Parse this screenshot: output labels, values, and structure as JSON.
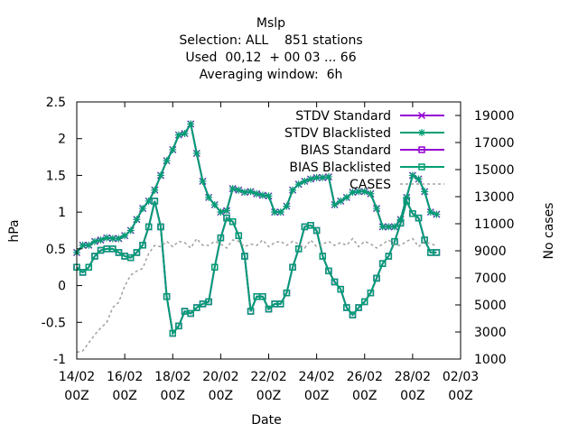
{
  "chart_data": {
    "type": "line",
    "title_lines": [
      "Mslp",
      "Selection: ALL    851 stations",
      "Used  00,12  + 00 03 ... 66",
      "Averaging window:  6h"
    ],
    "xlabel": "Date",
    "ylabel": "hPa",
    "y2label": "No cases",
    "x_unit": "days since 14/02 00Z",
    "x_ticks": [
      {
        "v": 0,
        "l1": "14/02",
        "l2": "00Z"
      },
      {
        "v": 2,
        "l1": "16/02",
        "l2": "00Z"
      },
      {
        "v": 4,
        "l1": "18/02",
        "l2": "00Z"
      },
      {
        "v": 6,
        "l1": "20/02",
        "l2": "00Z"
      },
      {
        "v": 8,
        "l1": "22/02",
        "l2": "00Z"
      },
      {
        "v": 10,
        "l1": "24/02",
        "l2": "00Z"
      },
      {
        "v": 12,
        "l1": "26/02",
        "l2": "00Z"
      },
      {
        "v": 14,
        "l1": "28/02",
        "l2": "00Z"
      },
      {
        "v": 16,
        "l1": "02/03",
        "l2": "00Z"
      }
    ],
    "xlim": [
      0,
      16
    ],
    "ylim": [
      -1,
      2.5
    ],
    "y_ticks": [
      -1,
      -0.5,
      0,
      0.5,
      1,
      1.5,
      2,
      2.5
    ],
    "y2lim": [
      1000,
      20000
    ],
    "y2_ticks": [
      1000,
      3000,
      5000,
      7000,
      9000,
      11000,
      13000,
      15000,
      17000,
      19000
    ],
    "legend_position": "top-right",
    "x": [
      0,
      0.25,
      0.5,
      0.75,
      1,
      1.25,
      1.5,
      1.75,
      2,
      2.25,
      2.5,
      2.75,
      3,
      3.25,
      3.5,
      3.75,
      4,
      4.25,
      4.5,
      4.75,
      5,
      5.25,
      5.5,
      5.75,
      6,
      6.25,
      6.5,
      6.75,
      7,
      7.25,
      7.5,
      7.75,
      8,
      8.25,
      8.5,
      8.75,
      9,
      9.25,
      9.5,
      9.75,
      10,
      10.25,
      10.5,
      10.75,
      11,
      11.25,
      11.5,
      11.75,
      12,
      12.25,
      12.5,
      12.75,
      13,
      13.25,
      13.5,
      13.75,
      14,
      14.25,
      14.5,
      14.75,
      15
    ],
    "series": [
      {
        "name": "STDV Standard",
        "axis": "y1",
        "color": "#9400d3",
        "marker": "x",
        "dash": "",
        "values": [
          0.45,
          0.55,
          0.55,
          0.6,
          0.62,
          0.65,
          0.64,
          0.64,
          0.68,
          0.75,
          0.9,
          1.05,
          1.15,
          1.3,
          1.5,
          1.7,
          1.85,
          2.05,
          2.07,
          2.2,
          1.8,
          1.42,
          1.2,
          1.1,
          1.0,
          1.02,
          1.32,
          1.3,
          1.27,
          1.28,
          1.25,
          1.23,
          1.22,
          1.0,
          1.0,
          1.08,
          1.3,
          1.38,
          1.42,
          1.45,
          1.47,
          1.47,
          1.48,
          1.1,
          1.15,
          1.2,
          1.27,
          1.28,
          1.28,
          1.25,
          1.05,
          0.8,
          0.8,
          0.8,
          0.9,
          1.2,
          1.5,
          1.45,
          1.28,
          1.0,
          0.97
        ]
      },
      {
        "name": "STDV Blacklisted",
        "axis": "y1",
        "color": "#009e73",
        "marker": "star",
        "dash": "",
        "values": [
          0.45,
          0.55,
          0.55,
          0.6,
          0.62,
          0.65,
          0.64,
          0.64,
          0.68,
          0.75,
          0.9,
          1.05,
          1.15,
          1.3,
          1.5,
          1.7,
          1.85,
          2.05,
          2.07,
          2.2,
          1.8,
          1.42,
          1.2,
          1.1,
          1.0,
          1.02,
          1.32,
          1.3,
          1.27,
          1.28,
          1.25,
          1.23,
          1.22,
          1.0,
          1.0,
          1.08,
          1.3,
          1.38,
          1.42,
          1.45,
          1.47,
          1.47,
          1.48,
          1.1,
          1.15,
          1.2,
          1.27,
          1.28,
          1.28,
          1.25,
          1.05,
          0.8,
          0.8,
          0.8,
          0.9,
          1.2,
          1.5,
          1.45,
          1.28,
          1.0,
          0.97
        ]
      },
      {
        "name": "BIAS Standard",
        "axis": "y1",
        "color": "#9400d3",
        "marker": "square",
        "dash": "",
        "values": [
          0.25,
          0.18,
          0.25,
          0.4,
          0.48,
          0.5,
          0.5,
          0.45,
          0.4,
          0.38,
          0.45,
          0.55,
          0.8,
          1.15,
          0.8,
          -0.15,
          -0.65,
          -0.55,
          -0.35,
          -0.38,
          -0.3,
          -0.25,
          -0.22,
          0.25,
          0.65,
          0.92,
          0.87,
          0.68,
          0.4,
          -0.35,
          -0.15,
          -0.15,
          -0.32,
          -0.25,
          -0.25,
          -0.1,
          0.25,
          0.5,
          0.8,
          0.82,
          0.75,
          0.4,
          0.2,
          0.05,
          -0.05,
          -0.3,
          -0.4,
          -0.3,
          -0.22,
          -0.1,
          0.1,
          0.3,
          0.4,
          0.6,
          0.85,
          1.15,
          0.98,
          0.92,
          0.62,
          0.45,
          0.45
        ]
      },
      {
        "name": "BIAS Blacklisted",
        "axis": "y1",
        "color": "#009e73",
        "marker": "square",
        "dash": "",
        "values": [
          0.25,
          0.18,
          0.25,
          0.4,
          0.48,
          0.5,
          0.5,
          0.45,
          0.4,
          0.38,
          0.45,
          0.55,
          0.8,
          1.15,
          0.8,
          -0.15,
          -0.65,
          -0.55,
          -0.35,
          -0.38,
          -0.3,
          -0.25,
          -0.22,
          0.25,
          0.65,
          0.92,
          0.87,
          0.68,
          0.4,
          -0.35,
          -0.15,
          -0.15,
          -0.32,
          -0.25,
          -0.25,
          -0.1,
          0.25,
          0.5,
          0.8,
          0.82,
          0.75,
          0.4,
          0.2,
          0.05,
          -0.05,
          -0.3,
          -0.4,
          -0.3,
          -0.22,
          -0.1,
          0.1,
          0.3,
          0.4,
          0.6,
          0.85,
          1.15,
          0.98,
          0.92,
          0.62,
          0.45,
          0.45
        ]
      },
      {
        "name": "CASES",
        "axis": "y2",
        "color": "#a0a0a0",
        "marker": "none",
        "dash": "3,3",
        "values": [
          1500,
          1600,
          2200,
          2800,
          3300,
          3700,
          4800,
          5200,
          6400,
          7200,
          7500,
          7700,
          8800,
          9400,
          9300,
          9700,
          9300,
          9700,
          9600,
          9200,
          9900,
          9400,
          9400,
          9700,
          9500,
          9200,
          9800,
          9700,
          9300,
          9500,
          9400,
          9800,
          9300,
          9600,
          9700,
          9400,
          9700,
          9500,
          9200,
          9800,
          9300,
          9500,
          9700,
          9400,
          9600,
          9400,
          9900,
          9300,
          9700,
          9500,
          9200,
          9500,
          9800,
          9400,
          9400,
          9700,
          9900,
          9300,
          9700,
          9500,
          9400
        ]
      }
    ]
  }
}
